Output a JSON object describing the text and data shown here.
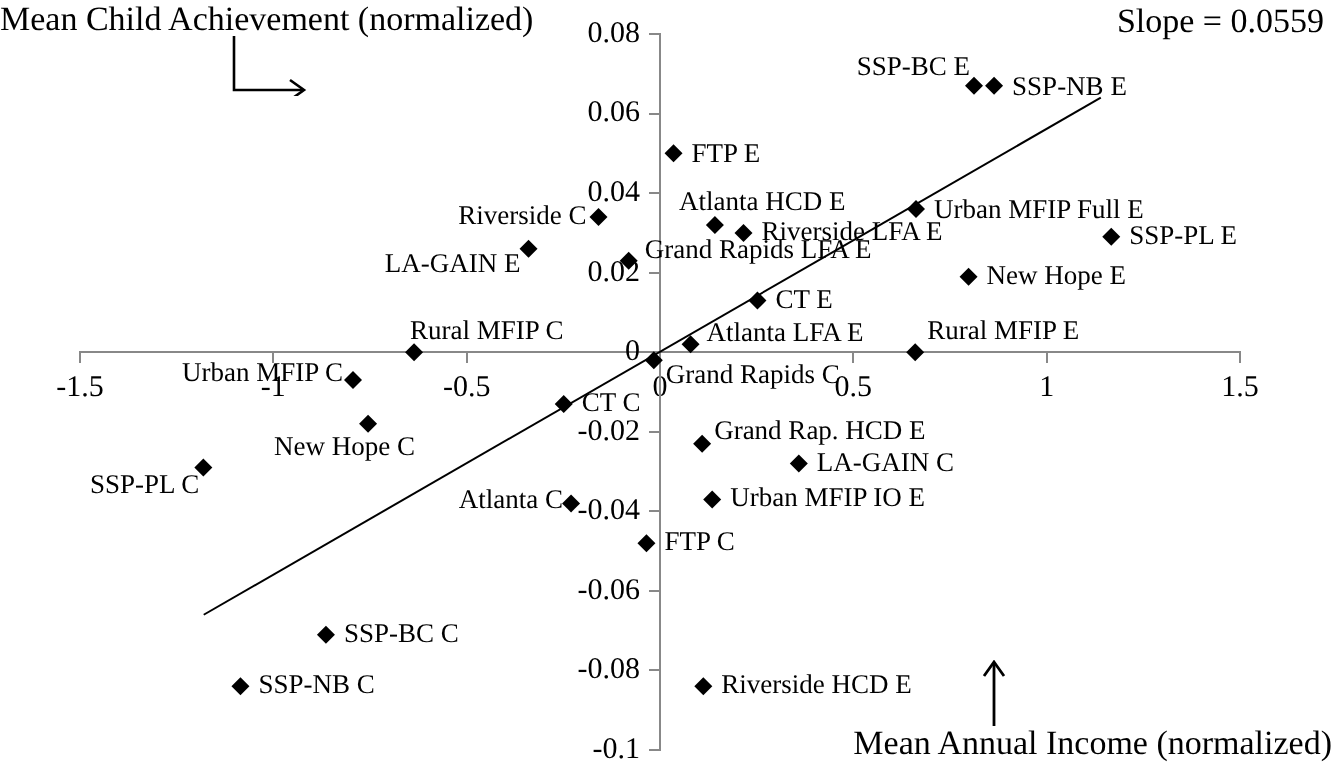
{
  "chart_data": {
    "type": "scatter",
    "xlabel": "Mean Annual Income (normalized)",
    "ylabel": "Mean Child Achievement (normalized)",
    "xlim": [
      -1.5,
      1.5
    ],
    "xticks": [
      -1.5,
      -1,
      -0.5,
      0,
      0.5,
      1,
      1.5
    ],
    "ylim": [
      -0.1,
      0.08
    ],
    "yticks": [
      -0.1,
      -0.08,
      -0.06,
      -0.04,
      -0.02,
      0,
      0.02,
      0.04,
      0.06,
      0.08
    ],
    "grid": false,
    "legend": false,
    "marker": "diamond",
    "series": [
      {
        "type": "scatter",
        "color": "#000000",
        "x": [
          -0.159,
          -0.34,
          -0.081,
          -0.636,
          -0.794,
          -0.016,
          0.812,
          0.864,
          0.035,
          0.142,
          0.216,
          0.662,
          1.167,
          0.798,
          0.252,
          0.079,
          0.66,
          -0.249,
          -0.755,
          -1.181,
          -0.23,
          -0.035,
          -0.864,
          -1.085,
          0.109,
          0.359,
          0.135,
          0.112
        ],
        "values": [
          0.034,
          0.026,
          0.023,
          0.0,
          -0.007,
          -0.002,
          0.067,
          0.067,
          0.05,
          0.032,
          0.03,
          0.036,
          0.029,
          0.019,
          0.013,
          0.002,
          0.0,
          -0.013,
          -0.018,
          -0.029,
          -0.038,
          -0.048,
          -0.071,
          -0.084,
          -0.023,
          -0.028,
          -0.037,
          -0.084
        ]
      },
      {
        "type": "line",
        "color": "#000000",
        "marker": "none",
        "line_style": "solid",
        "x": [
          -1.18,
          1.14
        ],
        "values": [
          -0.066,
          0.064
        ]
      }
    ],
    "annotations": [
      {
        "text": "Riverside C",
        "x": -0.159,
        "y": 0.034
      },
      {
        "text": "LA-GAIN E",
        "x": -0.34,
        "y": 0.026
      },
      {
        "text": "Grand Rapids LFA E",
        "x": -0.081,
        "y": 0.023
      },
      {
        "text": "Rural MFIP C",
        "x": -0.636,
        "y": 0.0
      },
      {
        "text": "Urban MFIP C",
        "x": -0.794,
        "y": -0.007
      },
      {
        "text": "Grand Rapids C",
        "x": -0.016,
        "y": -0.002
      },
      {
        "text": "SSP-BC E",
        "x": 0.812,
        "y": 0.067
      },
      {
        "text": "SSP-NB E",
        "x": 0.864,
        "y": 0.067
      },
      {
        "text": "FTP E",
        "x": 0.035,
        "y": 0.05
      },
      {
        "text": "Atlanta HCD E",
        "x": 0.142,
        "y": 0.032
      },
      {
        "text": "Riverside LFA E",
        "x": 0.216,
        "y": 0.03
      },
      {
        "text": "Urban MFIP Full E",
        "x": 0.662,
        "y": 0.036
      },
      {
        "text": "SSP-PL E",
        "x": 1.167,
        "y": 0.029
      },
      {
        "text": "New Hope E",
        "x": 0.798,
        "y": 0.019
      },
      {
        "text": "CT E",
        "x": 0.252,
        "y": 0.013
      },
      {
        "text": "Atlanta LFA E",
        "x": 0.079,
        "y": 0.002
      },
      {
        "text": "Rural MFIP E",
        "x": 0.66,
        "y": 0.0
      },
      {
        "text": "CT C",
        "x": -0.249,
        "y": -0.013
      },
      {
        "text": "New Hope C",
        "x": -0.755,
        "y": -0.018
      },
      {
        "text": "SSP-PL C",
        "x": -1.181,
        "y": -0.029
      },
      {
        "text": "Atlanta C",
        "x": -0.23,
        "y": -0.038
      },
      {
        "text": "FTP C",
        "x": -0.035,
        "y": -0.048
      },
      {
        "text": "SSP-BC C",
        "x": -0.864,
        "y": -0.071
      },
      {
        "text": "SSP-NB C",
        "x": -1.085,
        "y": -0.084
      },
      {
        "text": "Grand Rap. HCD E",
        "x": 0.109,
        "y": -0.023
      },
      {
        "text": "LA-GAIN C",
        "x": 0.359,
        "y": -0.028
      },
      {
        "text": "Urban MFIP IO E",
        "x": 0.135,
        "y": -0.037
      },
      {
        "text": "Riverside HCD E",
        "x": 0.112,
        "y": -0.084
      },
      "Slope = 0.0559"
    ]
  }
}
